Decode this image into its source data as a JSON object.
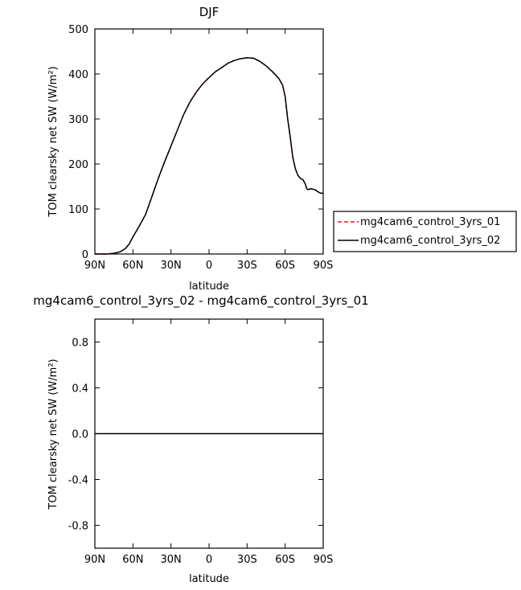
{
  "chart_data": [
    {
      "type": "line",
      "title": "DJF",
      "xlabel": "latitude",
      "ylabel": "TOM clearsky net SW (W/m²)",
      "xlim": [
        90,
        -90
      ],
      "ylim": [
        0,
        500
      ],
      "xticks": [
        90,
        60,
        30,
        0,
        -30,
        -60,
        -90
      ],
      "xtick_labels": [
        "90N",
        "60N",
        "30N",
        "0",
        "30S",
        "60S",
        "90S"
      ],
      "yticks": [
        0,
        100,
        200,
        300,
        400,
        500
      ],
      "ytick_labels": [
        "0",
        "100",
        "200",
        "300",
        "400",
        "500"
      ],
      "legend_position": "right",
      "x": [
        90,
        80,
        74,
        70,
        66,
        63,
        60,
        55,
        50,
        45,
        40,
        35,
        30,
        25,
        20,
        15,
        10,
        5,
        0,
        -5,
        -10,
        -15,
        -20,
        -25,
        -30,
        -35,
        -40,
        -45,
        -50,
        -55,
        -58,
        -60,
        -62,
        -64,
        -66,
        -68,
        -70,
        -72,
        -74,
        -76,
        -77,
        -78,
        -80,
        -82,
        -84,
        -86,
        -88,
        -90
      ],
      "series": [
        {
          "name": "mg4cam6_control_3yrs_01",
          "color": "#e8161b",
          "dash": "dashed",
          "values": [
            0,
            0,
            2,
            5,
            12,
            22,
            38,
            62,
            88,
            128,
            168,
            205,
            240,
            275,
            310,
            338,
            360,
            378,
            392,
            405,
            414,
            424,
            430,
            434,
            436,
            435,
            428,
            418,
            405,
            390,
            375,
            350,
            300,
            260,
            215,
            190,
            175,
            168,
            165,
            155,
            145,
            143,
            145,
            144,
            142,
            138,
            135,
            135
          ]
        },
        {
          "name": "mg4cam6_control_3yrs_02",
          "color": "#000000",
          "dash": "solid",
          "values": [
            0,
            0,
            2,
            5,
            12,
            22,
            38,
            62,
            88,
            128,
            168,
            205,
            240,
            275,
            310,
            338,
            360,
            378,
            392,
            405,
            414,
            424,
            430,
            434,
            436,
            435,
            428,
            418,
            405,
            390,
            375,
            350,
            300,
            260,
            215,
            190,
            175,
            168,
            165,
            155,
            145,
            143,
            145,
            144,
            142,
            138,
            135,
            135
          ]
        }
      ]
    },
    {
      "type": "line",
      "title": "mg4cam6_control_3yrs_02 - mg4cam6_control_3yrs_01",
      "xlabel": "latitude",
      "ylabel": "TOM clearsky net SW (W/m²)",
      "xlim": [
        90,
        -90
      ],
      "ylim": [
        -1,
        1
      ],
      "xticks": [
        90,
        60,
        30,
        0,
        -30,
        -60,
        -90
      ],
      "xtick_labels": [
        "90N",
        "60N",
        "30N",
        "0",
        "30S",
        "60S",
        "90S"
      ],
      "yticks": [
        0.8,
        0.4,
        0.0,
        -0.4,
        -0.8
      ],
      "ytick_labels": [
        "0.8",
        "0.4",
        "0.0",
        "-0.4",
        "-0.8"
      ],
      "x": [
        90,
        -90
      ],
      "series": [
        {
          "color": "#000000",
          "dash": "solid",
          "values": [
            0,
            0
          ]
        }
      ]
    }
  ]
}
